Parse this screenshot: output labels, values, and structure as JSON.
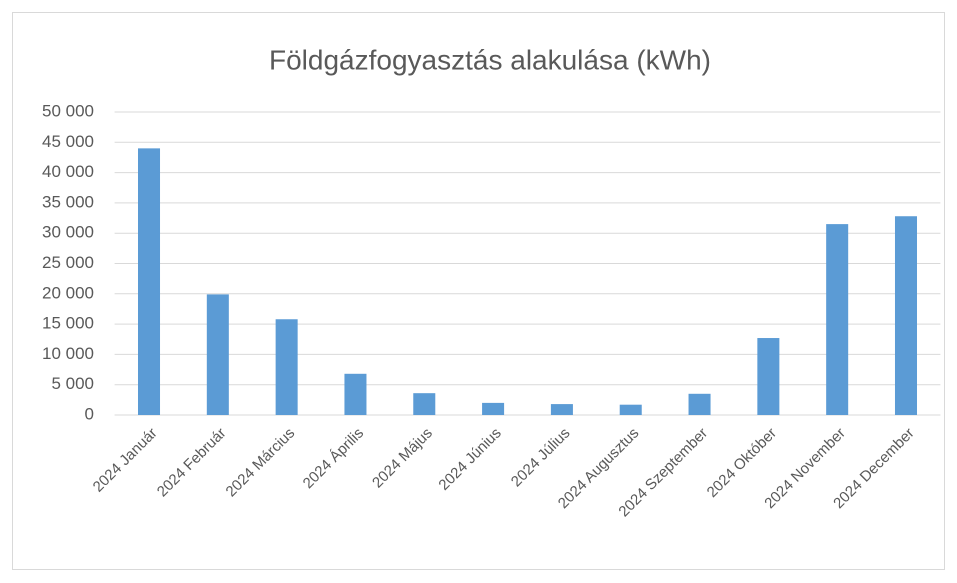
{
  "chart_data": {
    "type": "bar",
    "title": "Földgázfogyasztás alakulása (kWh)",
    "categories": [
      "2024 Január",
      "2024 Február",
      "2024 Március",
      "2024 Április",
      "2024 Május",
      "2024 Június",
      "2024 Július",
      "2024 Augusztus",
      "2024 Szeptember",
      "2024 Október",
      "2024 November",
      "2024 December"
    ],
    "values": [
      44000,
      19900,
      15800,
      6800,
      3600,
      2000,
      1800,
      1700,
      3500,
      12700,
      31500,
      32800
    ],
    "color": "#5b9bd5",
    "ylim": [
      0,
      50000
    ],
    "yticks": [
      0,
      {
        "value": 5000,
        "label": "5 000"
      },
      {
        "value": 10000,
        "label": "10 000"
      },
      {
        "value": 15000,
        "label": "15 000"
      },
      {
        "value": 20000,
        "label": "20 000"
      },
      {
        "value": 25000,
        "label": "25 000"
      },
      {
        "value": 30000,
        "label": "30 000"
      },
      {
        "value": 35000,
        "label": "35 000"
      },
      {
        "value": 40000,
        "label": "40 000"
      },
      {
        "value": 45000,
        "label": "45 000"
      },
      {
        "value": 50000,
        "label": "50 000"
      }
    ],
    "grid": true
  }
}
